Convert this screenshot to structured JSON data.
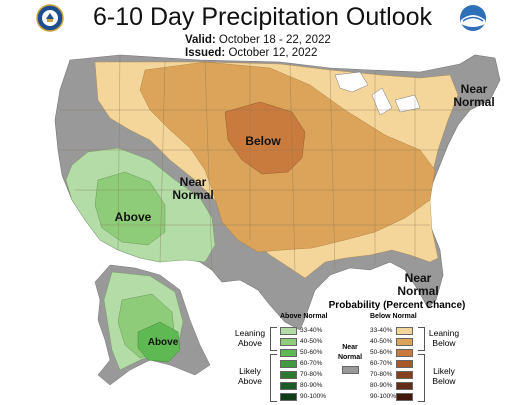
{
  "title": "6-10 Day Precipitation Outlook",
  "valid_label": "Valid:",
  "valid_dates": "October 18 - 22, 2022",
  "issued_label": "Issued:",
  "issued_date": "October 12, 2022",
  "left_logo": "department-of-commerce-seal",
  "right_logo": "noaa-logo",
  "map_labels": {
    "below": "Below",
    "above_west": "Above",
    "near_normal_west_1": "Near",
    "near_normal_west_2": "Normal",
    "near_normal_ne_1": "Near",
    "near_normal_ne_2": "Normal",
    "near_normal_se_1": "Near",
    "near_normal_se_2": "Normal",
    "above_alaska": "Above"
  },
  "legend": {
    "title": "Probability (Percent Chance)",
    "above_header": "Above Normal",
    "below_header": "Below Normal",
    "near_normal_1": "Near",
    "near_normal_2": "Normal",
    "leaning_above_1": "Leaning",
    "leaning_above_2": "Above",
    "likely_above_1": "Likely",
    "likely_above_2": "Above",
    "leaning_below_1": "Leaning",
    "leaning_below_2": "Below",
    "likely_below_1": "Likely",
    "likely_below_2": "Below",
    "above_bins": [
      {
        "label": "33-40%",
        "color": "#b3dca6"
      },
      {
        "label": "40-50%",
        "color": "#8fcc7a"
      },
      {
        "label": "50-60%",
        "color": "#5fb953"
      },
      {
        "label": "60-70%",
        "color": "#3e9b3f"
      },
      {
        "label": "70-80%",
        "color": "#2a7a32"
      },
      {
        "label": "80-90%",
        "color": "#1c5a26"
      },
      {
        "label": "90-100%",
        "color": "#0f3d17"
      }
    ],
    "below_bins": [
      {
        "label": "33-40%",
        "color": "#f4d59a"
      },
      {
        "label": "40-50%",
        "color": "#dba45a"
      },
      {
        "label": "50-60%",
        "color": "#c97a3d"
      },
      {
        "label": "60-70%",
        "color": "#a8592b"
      },
      {
        "label": "70-80%",
        "color": "#86401f"
      },
      {
        "label": "80-90%",
        "color": "#632c16"
      },
      {
        "label": "90-100%",
        "color": "#44190c"
      }
    ],
    "near_color": "#999999"
  }
}
